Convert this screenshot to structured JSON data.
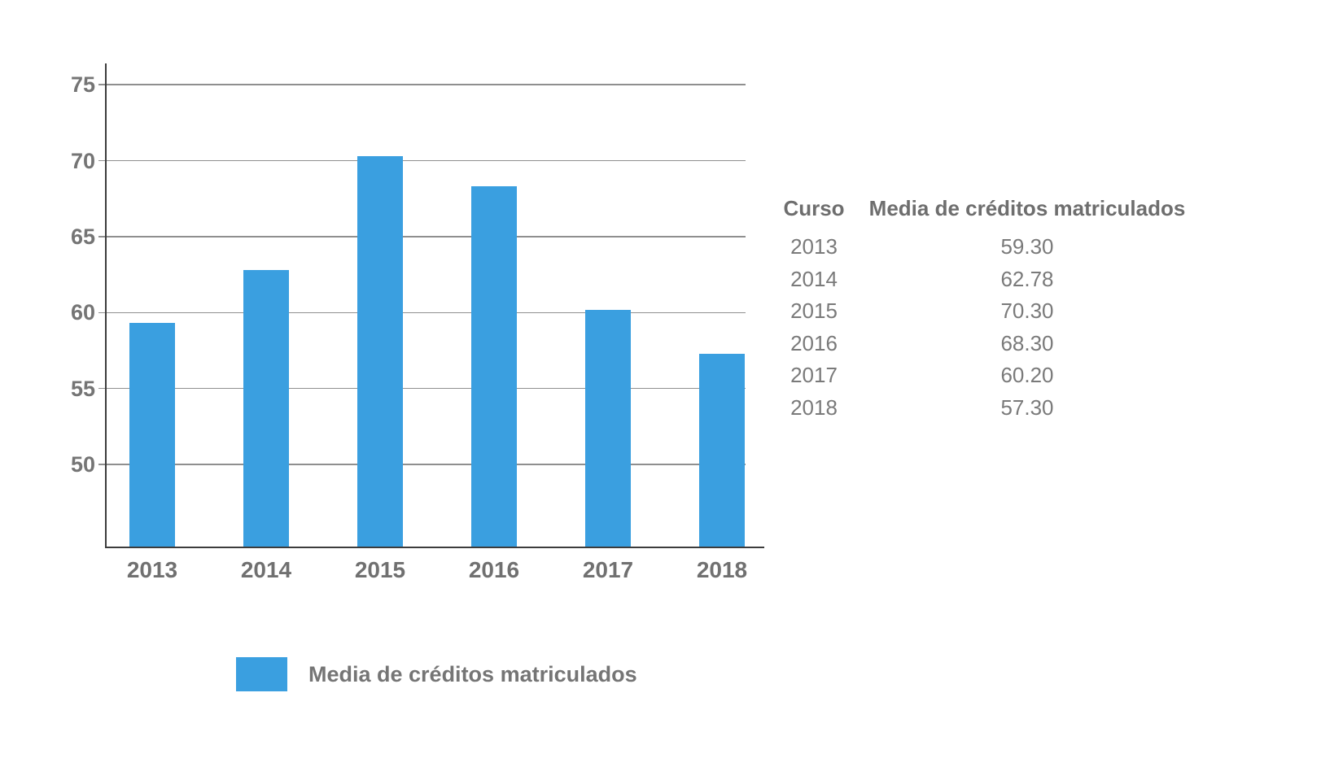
{
  "chart_data": {
    "type": "bar",
    "title": "",
    "categories": [
      "2013",
      "2014",
      "2015",
      "2016",
      "2017",
      "2018"
    ],
    "series": [
      {
        "name": "Media de créditos matriculados",
        "values": [
          59.3,
          62.78,
          70.3,
          68.3,
          60.2,
          57.3
        ]
      }
    ],
    "xlabel": "",
    "ylabel": "",
    "yticks": [
      50,
      55,
      60,
      65,
      70,
      75
    ],
    "ylim": [
      44.6,
      76.4
    ],
    "grid": true,
    "legend_position": "bottom",
    "bar_color": "#3A9FE0"
  },
  "table": {
    "headers": [
      "Curso",
      "Media de créditos matriculados"
    ],
    "rows": [
      {
        "curso": "2013",
        "media": "59.30"
      },
      {
        "curso": "2014",
        "media": "62.78"
      },
      {
        "curso": "2015",
        "media": "70.30"
      },
      {
        "curso": "2016",
        "media": "68.30"
      },
      {
        "curso": "2017",
        "media": "60.20"
      },
      {
        "curso": "2018",
        "media": "57.30"
      }
    ]
  },
  "legend": {
    "label": "Media de créditos matriculados",
    "swatch_color": "#3A9FE0"
  },
  "colors": {
    "bar": "#3A9FE0",
    "axis_line": "#3c3c3c",
    "gridline": "#8f8f8f",
    "text": "#757575",
    "background": "#ffffff"
  }
}
